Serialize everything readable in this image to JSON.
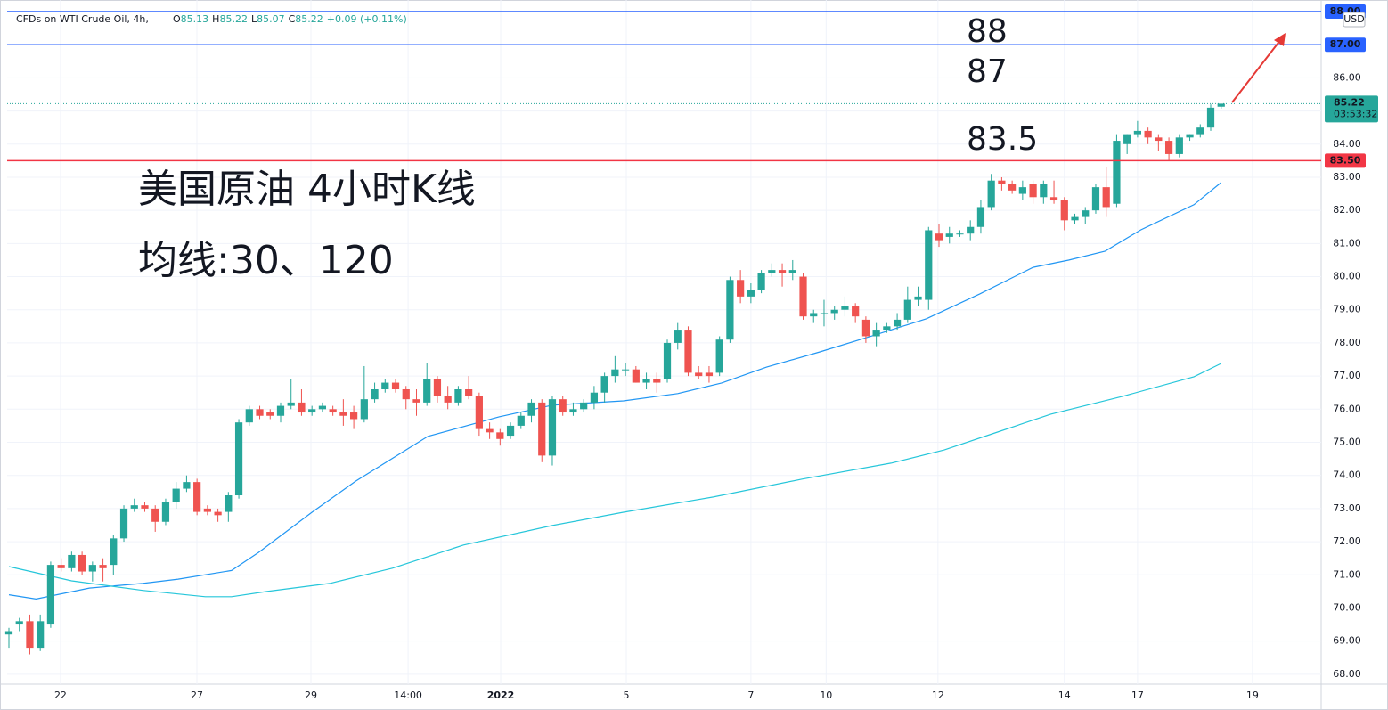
{
  "chart_data": {
    "type": "candlestick",
    "header": {
      "symbol": "CFDs on WTI Crude Oil, 4h,",
      "fields": [
        {
          "label": "O",
          "value": "85.13"
        },
        {
          "label": "H",
          "value": "85.22"
        },
        {
          "label": "L",
          "value": "85.07"
        },
        {
          "label": "C",
          "value": "85.22"
        }
      ],
      "change": "+0.09 (+0.11%)"
    },
    "currency": "USD",
    "up_color": "#26a69a",
    "down_color": "#ef5350",
    "candles": [
      [
        69.2,
        69.4,
        68.8,
        69.3
      ],
      [
        69.5,
        69.7,
        69.3,
        69.6
      ],
      [
        69.6,
        69.8,
        68.6,
        68.8
      ],
      [
        68.8,
        69.8,
        68.7,
        69.6
      ],
      [
        69.5,
        71.4,
        69.4,
        71.3
      ],
      [
        71.3,
        71.5,
        71.1,
        71.2
      ],
      [
        71.2,
        71.7,
        71.1,
        71.6
      ],
      [
        71.6,
        71.7,
        71.0,
        71.1
      ],
      [
        71.1,
        71.4,
        70.8,
        71.3
      ],
      [
        71.3,
        71.5,
        70.8,
        71.2
      ],
      [
        71.3,
        72.2,
        71.0,
        72.1
      ],
      [
        72.1,
        73.1,
        72.0,
        73.0
      ],
      [
        73.0,
        73.3,
        72.9,
        73.1
      ],
      [
        73.1,
        73.2,
        72.9,
        73.0
      ],
      [
        73.0,
        73.1,
        72.3,
        72.6
      ],
      [
        72.6,
        73.3,
        72.5,
        73.2
      ],
      [
        73.2,
        73.8,
        73.0,
        73.6
      ],
      [
        73.6,
        74.0,
        73.5,
        73.8
      ],
      [
        73.8,
        73.9,
        72.8,
        72.9
      ],
      [
        73.0,
        73.1,
        72.8,
        72.9
      ],
      [
        72.9,
        73.0,
        72.6,
        72.8
      ],
      [
        72.9,
        73.5,
        72.6,
        73.4
      ],
      [
        73.4,
        75.7,
        73.3,
        75.6
      ],
      [
        75.6,
        76.1,
        75.5,
        76.0
      ],
      [
        76.0,
        76.1,
        75.7,
        75.8
      ],
      [
        75.9,
        76.0,
        75.7,
        75.8
      ],
      [
        75.8,
        76.2,
        75.6,
        76.1
      ],
      [
        76.1,
        76.9,
        76.0,
        76.2
      ],
      [
        76.2,
        76.6,
        75.8,
        75.9
      ],
      [
        75.9,
        76.1,
        75.8,
        76.0
      ],
      [
        76.0,
        76.2,
        75.9,
        76.1
      ],
      [
        76.0,
        76.1,
        75.8,
        75.9
      ],
      [
        75.9,
        76.3,
        75.5,
        75.8
      ],
      [
        75.9,
        76.1,
        75.4,
        75.7
      ],
      [
        75.7,
        77.3,
        75.6,
        76.3
      ],
      [
        76.3,
        76.8,
        76.2,
        76.6
      ],
      [
        76.6,
        76.9,
        76.5,
        76.8
      ],
      [
        76.8,
        76.9,
        76.5,
        76.6
      ],
      [
        76.6,
        76.7,
        76.0,
        76.3
      ],
      [
        76.3,
        76.6,
        75.8,
        76.2
      ],
      [
        76.2,
        77.4,
        76.1,
        76.9
      ],
      [
        76.9,
        77.0,
        76.2,
        76.4
      ],
      [
        76.4,
        76.7,
        76.0,
        76.2
      ],
      [
        76.2,
        76.7,
        76.1,
        76.6
      ],
      [
        76.6,
        77.0,
        76.3,
        76.4
      ],
      [
        76.4,
        76.5,
        75.2,
        75.4
      ],
      [
        75.4,
        75.6,
        75.1,
        75.3
      ],
      [
        75.3,
        75.4,
        74.9,
        75.1
      ],
      [
        75.2,
        75.6,
        75.1,
        75.5
      ],
      [
        75.5,
        75.9,
        75.4,
        75.8
      ],
      [
        75.8,
        76.3,
        75.6,
        76.2
      ],
      [
        76.2,
        76.3,
        74.4,
        74.6
      ],
      [
        74.6,
        76.4,
        74.3,
        76.3
      ],
      [
        76.3,
        76.4,
        75.8,
        75.9
      ],
      [
        75.9,
        76.2,
        75.8,
        76.0
      ],
      [
        76.0,
        76.3,
        75.9,
        76.2
      ],
      [
        76.2,
        76.7,
        76.0,
        76.5
      ],
      [
        76.5,
        77.1,
        76.2,
        77.0
      ],
      [
        77.0,
        77.6,
        76.8,
        77.2
      ],
      [
        77.2,
        77.4,
        77.0,
        77.2
      ],
      [
        77.2,
        77.3,
        76.8,
        76.8
      ],
      [
        76.8,
        77.1,
        76.6,
        76.9
      ],
      [
        76.9,
        77.1,
        76.5,
        76.8
      ],
      [
        76.9,
        78.1,
        76.8,
        78.0
      ],
      [
        78.0,
        78.6,
        77.8,
        78.4
      ],
      [
        78.4,
        78.5,
        77.0,
        77.1
      ],
      [
        77.1,
        77.3,
        76.9,
        77.0
      ],
      [
        77.1,
        77.3,
        76.8,
        77.0
      ],
      [
        77.1,
        78.2,
        77.0,
        78.1
      ],
      [
        78.1,
        80.0,
        78.0,
        79.9
      ],
      [
        79.9,
        80.2,
        79.2,
        79.4
      ],
      [
        79.4,
        79.8,
        79.2,
        79.6
      ],
      [
        79.6,
        80.2,
        79.5,
        80.1
      ],
      [
        80.1,
        80.4,
        80.0,
        80.2
      ],
      [
        80.2,
        80.4,
        79.7,
        80.1
      ],
      [
        80.1,
        80.5,
        79.9,
        80.2
      ],
      [
        80.0,
        80.1,
        78.7,
        78.8
      ],
      [
        78.8,
        79.0,
        78.6,
        78.9
      ],
      [
        78.9,
        79.3,
        78.5,
        78.9
      ],
      [
        78.9,
        79.1,
        78.7,
        79.0
      ],
      [
        79.0,
        79.4,
        78.8,
        79.1
      ],
      [
        79.1,
        79.2,
        78.6,
        78.8
      ],
      [
        78.7,
        78.8,
        78.0,
        78.2
      ],
      [
        78.2,
        78.6,
        77.9,
        78.4
      ],
      [
        78.4,
        78.6,
        78.3,
        78.5
      ],
      [
        78.5,
        78.9,
        78.4,
        78.7
      ],
      [
        78.7,
        79.7,
        78.6,
        79.3
      ],
      [
        79.3,
        79.7,
        79.1,
        79.4
      ],
      [
        79.3,
        81.5,
        79.0,
        81.4
      ],
      [
        81.3,
        81.6,
        80.9,
        81.1
      ],
      [
        81.2,
        81.5,
        81.0,
        81.3
      ],
      [
        81.3,
        81.4,
        81.2,
        81.3
      ],
      [
        81.3,
        81.7,
        81.1,
        81.5
      ],
      [
        81.5,
        82.3,
        81.3,
        82.1
      ],
      [
        82.1,
        83.1,
        82.0,
        82.9
      ],
      [
        82.9,
        83.0,
        82.6,
        82.8
      ],
      [
        82.8,
        82.9,
        82.5,
        82.6
      ],
      [
        82.5,
        82.9,
        82.3,
        82.7
      ],
      [
        82.8,
        82.9,
        82.2,
        82.4
      ],
      [
        82.4,
        82.9,
        82.2,
        82.8
      ],
      [
        82.4,
        82.9,
        82.2,
        82.3
      ],
      [
        82.3,
        82.4,
        81.4,
        81.7
      ],
      [
        81.7,
        81.9,
        81.6,
        81.8
      ],
      [
        81.8,
        82.1,
        81.6,
        82.0
      ],
      [
        82.0,
        82.8,
        81.9,
        82.7
      ],
      [
        82.7,
        83.3,
        81.8,
        82.1
      ],
      [
        82.2,
        84.3,
        82.1,
        84.1
      ],
      [
        84.0,
        84.3,
        83.7,
        84.3
      ],
      [
        84.3,
        84.7,
        84.2,
        84.4
      ],
      [
        84.4,
        84.5,
        84.0,
        84.2
      ],
      [
        84.2,
        84.3,
        83.8,
        84.1
      ],
      [
        84.1,
        84.2,
        83.5,
        83.7
      ],
      [
        83.7,
        84.3,
        83.6,
        84.2
      ],
      [
        84.2,
        84.3,
        84.1,
        84.3
      ],
      [
        84.3,
        84.6,
        84.2,
        84.5
      ],
      [
        84.5,
        85.2,
        84.4,
        85.1
      ],
      [
        85.13,
        85.22,
        85.07,
        85.22
      ]
    ],
    "series": [
      {
        "color": "#2196f3",
        "x": [
          0,
          2.6,
          7.7,
          12.8,
          16.2,
          21.3,
          23.9,
          29,
          33.2,
          40.1,
          46.9,
          52,
          58.8,
          64,
          68.2,
          72.5,
          77.6,
          82.7,
          87.8,
          92.9,
          98,
          101.4,
          104.9,
          108.3,
          113.4,
          116
        ],
        "values": [
          70.4,
          70.27,
          70.6,
          70.74,
          70.87,
          71.13,
          71.68,
          72.89,
          73.83,
          75.18,
          75.77,
          76.12,
          76.25,
          76.47,
          76.79,
          77.27,
          77.73,
          78.22,
          78.73,
          79.48,
          80.28,
          80.5,
          80.77,
          81.41,
          82.17,
          82.84
        ]
      },
      {
        "color": "#26c6da",
        "x": [
          0,
          6,
          12.8,
          18.8,
          21.3,
          24.7,
          30.7,
          36.7,
          43.5,
          52,
          58.8,
          67.4,
          75.9,
          84.4,
          89.5,
          94.6,
          99.7,
          106.6,
          113.4,
          116
        ],
        "values": [
          71.25,
          70.82,
          70.53,
          70.34,
          70.34,
          70.5,
          70.74,
          71.2,
          71.9,
          72.49,
          72.89,
          73.35,
          73.89,
          74.37,
          74.77,
          75.31,
          75.85,
          76.39,
          76.98,
          77.38
        ]
      }
    ],
    "levels": [
      {
        "value": 88,
        "label": "88.00",
        "color": "#2962ff"
      },
      {
        "value": 87,
        "label": "87.00",
        "color": "#2962ff"
      },
      {
        "value": 83.5,
        "label": "83.50",
        "color": "#f23645"
      }
    ],
    "last": {
      "value": 85.22,
      "label": "85.22",
      "countdown": "03:53:32",
      "color": "#26a69a"
    },
    "annotations": [
      "88",
      "87",
      "83.5",
      "美国原油 4小时K线",
      "均线:30、120"
    ],
    "annotation_color": "#e53935",
    "xlim": [
      -0.17,
      125.57
    ],
    "ylim": [
      67.7,
      88.35
    ],
    "xticks": [
      {
        "value": 4.94,
        "label": "22"
      },
      {
        "value": 17.99,
        "label": "27"
      },
      {
        "value": 28.9,
        "label": "29"
      },
      {
        "value": 38.2,
        "label": "14:00"
      },
      {
        "value": 47.06,
        "label": "2022"
      },
      {
        "value": 59.08,
        "label": "5"
      },
      {
        "value": 71.0,
        "label": "7"
      },
      {
        "value": 78.2,
        "label": "10"
      },
      {
        "value": 88.9,
        "label": "12"
      },
      {
        "value": 101.0,
        "label": "14"
      },
      {
        "value": 108.0,
        "label": "17"
      },
      {
        "value": 119.0,
        "label": "19"
      }
    ],
    "yticks": [
      {
        "value": 68,
        "label": "68.00"
      },
      {
        "value": 69,
        "label": "69.00"
      },
      {
        "value": 70,
        "label": "70.00"
      },
      {
        "value": 71,
        "label": "71.00"
      },
      {
        "value": 72,
        "label": "72.00"
      },
      {
        "value": 73,
        "label": "73.00"
      },
      {
        "value": 74,
        "label": "74.00"
      },
      {
        "value": 75,
        "label": "75.00"
      },
      {
        "value": 76,
        "label": "76.00"
      },
      {
        "value": 77,
        "label": "77.00"
      },
      {
        "value": 78,
        "label": "78.00"
      },
      {
        "value": 79,
        "label": "79.00"
      },
      {
        "value": 80,
        "label": "80.00"
      },
      {
        "value": 81,
        "label": "81.00"
      },
      {
        "value": 82,
        "label": "82.00"
      },
      {
        "value": 83,
        "label": "83.00"
      },
      {
        "value": 84,
        "label": "84.00"
      },
      {
        "value": 85,
        "label": "85.00"
      },
      {
        "value": 86,
        "label": "86.00"
      }
    ]
  }
}
